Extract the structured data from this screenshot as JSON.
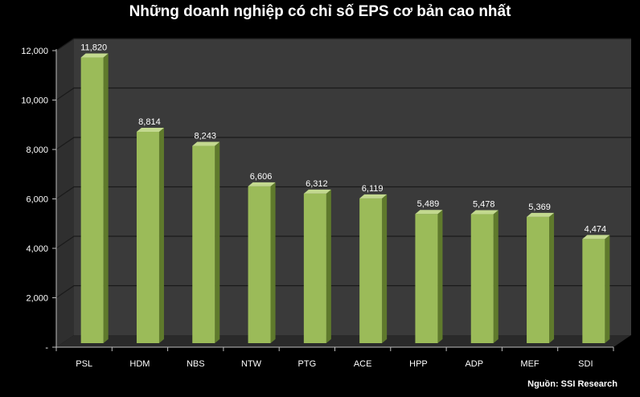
{
  "chart_data": {
    "type": "bar",
    "title": "Những doanh nghiệp có chỉ số EPS cơ bản cao nhất",
    "categories": [
      "PSL",
      "HDM",
      "NBS",
      "NTW",
      "PTG",
      "ACE",
      "HPP",
      "ADP",
      "MEF",
      "SDI"
    ],
    "values": [
      11820,
      8814,
      8243,
      6606,
      6312,
      6119,
      5489,
      5478,
      5369,
      4474
    ],
    "data_labels": [
      "11,820",
      "8,814",
      "8,243",
      "6,606",
      "6,312",
      "6,119",
      "5,489",
      "5,478",
      "5,369",
      "4,474"
    ],
    "yticks": [
      {
        "value": 0,
        "label": "-"
      },
      {
        "value": 2000,
        "label": "2,000"
      },
      {
        "value": 4000,
        "label": "4,000"
      },
      {
        "value": 6000,
        "label": "6,000"
      },
      {
        "value": 8000,
        "label": "8,000"
      },
      {
        "value": 10000,
        "label": "10,000"
      },
      {
        "value": 12000,
        "label": "12,000"
      }
    ],
    "ylim": [
      0,
      12000
    ],
    "xlabel": "",
    "ylabel": "",
    "grid": true,
    "legend": "none",
    "source": "Nguồn: SSI Research",
    "colors": {
      "bar_front": "#9bbb59",
      "bar_side": "#5f7a2c",
      "bar_top": "#c3d98f",
      "wall": "#3a3a3a",
      "floor": "#2a2a2a",
      "gridline": "#1a1a1a"
    }
  }
}
